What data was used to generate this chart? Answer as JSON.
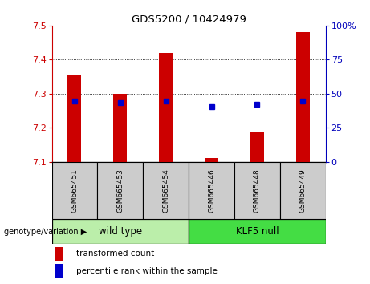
{
  "title": "GDS5200 / 10424979",
  "samples": [
    "GSM665451",
    "GSM665453",
    "GSM665454",
    "GSM665446",
    "GSM665448",
    "GSM665449"
  ],
  "bar_tops": [
    7.355,
    7.3,
    7.42,
    7.112,
    7.19,
    7.48
  ],
  "bar_bottom": 7.1,
  "blue_y": [
    7.278,
    7.273,
    7.278,
    7.263,
    7.268,
    7.278
  ],
  "ylim": [
    7.1,
    7.5
  ],
  "right_ylim": [
    0,
    100
  ],
  "right_ticks": [
    0,
    25,
    50,
    75,
    100
  ],
  "right_tick_labels": [
    "0",
    "25",
    "50",
    "75",
    "100%"
  ],
  "left_ticks": [
    7.1,
    7.2,
    7.3,
    7.4,
    7.5
  ],
  "bar_color": "#cc0000",
  "blue_color": "#0000cc",
  "groups": [
    {
      "label": "wild type",
      "n": 3,
      "color": "#aaeea0"
    },
    {
      "label": "KLF5 null",
      "n": 3,
      "color": "#44dd44"
    }
  ],
  "group_label": "genotype/variation",
  "legend_items": [
    {
      "label": "transformed count",
      "color": "#cc0000"
    },
    {
      "label": "percentile rank within the sample",
      "color": "#0000cc"
    }
  ],
  "ax_bg": "#ffffff",
  "left_color": "#cc0000",
  "right_color": "#0000bb",
  "sample_cell_color": "#cccccc",
  "bar_width": 0.3
}
